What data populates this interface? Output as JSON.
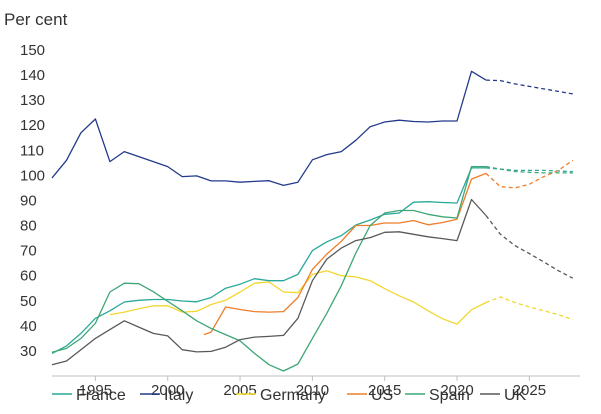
{
  "chart_data": {
    "type": "line",
    "ylabel": "Per cent",
    "ylim": [
      20,
      150
    ],
    "yticks": [
      20,
      30,
      40,
      50,
      60,
      70,
      80,
      90,
      100,
      110,
      120,
      130,
      140,
      150
    ],
    "xlim": [
      1992,
      2028.5
    ],
    "xticks": [
      1995,
      2000,
      2005,
      2010,
      2015,
      2020,
      2025
    ],
    "grid": false,
    "legend_position": "bottom",
    "projection_start_note": "dashed segments after 2022",
    "series": [
      {
        "name": "France",
        "color": "#2aa89a",
        "x": [
          1992,
          1993,
          1994,
          1995,
          1996,
          1997,
          1998,
          1999,
          2000,
          2001,
          2002,
          2003,
          2004,
          2005,
          2006,
          2007,
          2008,
          2009,
          2010,
          2011,
          2012,
          2013,
          2014,
          2015,
          2016,
          2017,
          2018,
          2019,
          2020,
          2021,
          2022
        ],
        "y": [
          29,
          32,
          37,
          43,
          46,
          49.5,
          50.2,
          50.5,
          50.5,
          49.9,
          49.6,
          51.3,
          55,
          56.6,
          58.8,
          58,
          58,
          60.5,
          70,
          73.5,
          76,
          80.2,
          82.2,
          84.5,
          85,
          89.3,
          89.5,
          89.2,
          89,
          103,
          103
        ],
        "projection_x": [
          2022,
          2024,
          2026,
          2028
        ],
        "projection_y": [
          103,
          102,
          102,
          101.5
        ]
      },
      {
        "name": "Italy",
        "color": "#233a8b",
        "x": [
          1992,
          1993,
          1994,
          1995,
          1996,
          1997,
          1998,
          1999,
          2000,
          2001,
          2002,
          2003,
          2004,
          2005,
          2006,
          2007,
          2008,
          2009,
          2010,
          2011,
          2012,
          2013,
          2014,
          2015,
          2016,
          2017,
          2018,
          2019,
          2020,
          2021,
          2022
        ],
        "y": [
          99,
          106,
          117,
          122.5,
          105.5,
          109.5,
          107.5,
          105.5,
          103.5,
          99.5,
          99.8,
          97.8,
          97.8,
          97.3,
          97.6,
          97.9,
          96,
          97.3,
          106.2,
          108.3,
          109.5,
          114,
          119.4,
          121.3,
          122,
          121.5,
          121.3,
          121.7,
          121.7,
          141.5,
          138
        ],
        "projection_x": [
          2022,
          2023,
          2024,
          2025,
          2026,
          2027,
          2028
        ],
        "projection_y": [
          138,
          137.8,
          136.5,
          135.5,
          134.5,
          133.5,
          132.5
        ]
      },
      {
        "name": "Germany",
        "color": "#f2d72e",
        "x": [
          1996,
          1997,
          1998,
          1999,
          2000,
          2001,
          2002,
          2003,
          2004,
          2005,
          2006,
          2007,
          2008,
          2009,
          2010,
          2011,
          2012,
          2013,
          2014,
          2015,
          2016,
          2017,
          2018,
          2019,
          2020,
          2021,
          2022
        ],
        "y": [
          44.5,
          45.5,
          46.8,
          48,
          48,
          45.5,
          45.8,
          48.5,
          50.2,
          53.5,
          57,
          57.5,
          53.5,
          53.2,
          60.5,
          62,
          60,
          59.5,
          58,
          54.8,
          52,
          49.5,
          46,
          42.8,
          40.7,
          46.4,
          49.3
        ],
        "projection_x": [
          2022,
          2023,
          2024,
          2025,
          2026,
          2027,
          2028
        ],
        "projection_y": [
          49.3,
          51.5,
          49.3,
          47.5,
          46,
          44.5,
          42.5
        ]
      },
      {
        "name": "US",
        "color": "#ef7d2a",
        "x": [
          2002.5,
          2003,
          2004,
          2005,
          2006,
          2007,
          2008,
          2009,
          2010,
          2011,
          2012,
          2013,
          2014,
          2015,
          2016,
          2017,
          2018,
          2019,
          2020,
          2021,
          2022
        ],
        "y": [
          36.5,
          37.5,
          47.5,
          46.5,
          45.7,
          45.5,
          45.7,
          51.3,
          62.5,
          68.6,
          73.7,
          80,
          80,
          81,
          81,
          82,
          80.3,
          81.2,
          82.5,
          98.5,
          100.8
        ],
        "projection_x": [
          2022,
          2023,
          2024,
          2025,
          2026,
          2027,
          2028
        ],
        "projection_y": [
          100.8,
          95.5,
          95,
          96.5,
          99.5,
          102,
          106
        ]
      },
      {
        "name": "Spain",
        "color": "#3fa676",
        "x": [
          1992,
          1993,
          1994,
          1995,
          1996,
          1997,
          1998,
          1999,
          2000,
          2001,
          2002,
          2003,
          2004,
          2005,
          2006,
          2007,
          2008,
          2009,
          2010,
          2011,
          2012,
          2013,
          2014,
          2015,
          2016,
          2017,
          2018,
          2019,
          2020,
          2021,
          2022
        ],
        "y": [
          29.5,
          31,
          35,
          41,
          53.5,
          57,
          56.8,
          53.6,
          49.8,
          46,
          42,
          39,
          36.5,
          34,
          29,
          24.5,
          22,
          24.8,
          35,
          45,
          56,
          69,
          80,
          85,
          86,
          86,
          84.5,
          83.5,
          83,
          103.5,
          103.5
        ],
        "projection_x": [
          2022,
          2024,
          2026,
          2028
        ],
        "projection_y": [
          103.5,
          101.5,
          101,
          101
        ]
      },
      {
        "name": "UK",
        "color": "#595959",
        "x": [
          1992,
          1993,
          1994,
          1995,
          1996,
          1997,
          1998,
          1999,
          2000,
          2001,
          2002,
          2003,
          2004,
          2005,
          2006,
          2007,
          2008,
          2009,
          2010,
          2011,
          2012,
          2013,
          2014,
          2015,
          2016,
          2017,
          2018,
          2019,
          2020,
          2021,
          2022
        ],
        "y": [
          24.5,
          26,
          30.5,
          35,
          38.5,
          42,
          39.5,
          37,
          36,
          30.5,
          29.6,
          29.8,
          31.5,
          34.5,
          35.5,
          35.8,
          36.2,
          43,
          58,
          66.6,
          71,
          74,
          75.2,
          77.3,
          77.5,
          76.5,
          75.5,
          74.8,
          74,
          90.4,
          84
        ],
        "projection_x": [
          2022,
          2023,
          2024,
          2025,
          2026,
          2027,
          2028
        ],
        "projection_y": [
          84,
          76.5,
          72,
          68.8,
          65.5,
          62,
          59
        ]
      }
    ]
  }
}
